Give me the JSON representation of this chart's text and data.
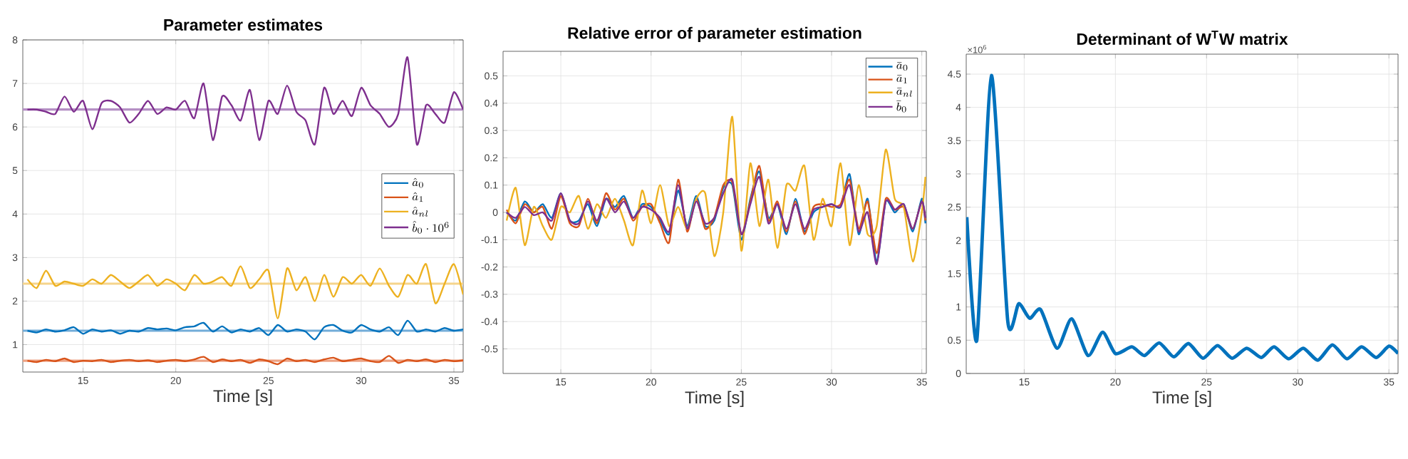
{
  "chart_data": [
    {
      "type": "line",
      "title": "Parameter estimates",
      "xlabel": "Time [s]",
      "x": [
        12,
        12.5,
        13,
        13.5,
        14,
        14.5,
        15,
        15.5,
        16,
        16.5,
        17,
        17.5,
        18,
        18.5,
        19,
        19.5,
        20,
        20.5,
        21,
        21.5,
        22,
        22.5,
        23,
        23.5,
        24,
        24.5,
        25,
        25.5,
        26,
        26.5,
        27,
        27.5,
        28,
        28.5,
        29,
        29.5,
        30,
        30.5,
        31,
        31.5,
        32,
        32.5,
        33,
        33.5,
        34,
        34.5,
        35,
        35.5
      ],
      "series": [
        {
          "name": "\\hat{a}_0",
          "color": "#0072bd",
          "values": [
            1.32,
            1.28,
            1.35,
            1.3,
            1.33,
            1.4,
            1.25,
            1.35,
            1.3,
            1.33,
            1.25,
            1.32,
            1.3,
            1.38,
            1.35,
            1.37,
            1.33,
            1.4,
            1.42,
            1.5,
            1.3,
            1.42,
            1.28,
            1.35,
            1.3,
            1.38,
            1.22,
            1.45,
            1.3,
            1.35,
            1.3,
            1.12,
            1.4,
            1.45,
            1.32,
            1.28,
            1.45,
            1.35,
            1.3,
            1.4,
            1.22,
            1.55,
            1.3,
            1.35,
            1.3,
            1.38,
            1.32,
            1.35
          ]
        },
        {
          "name": "\\hat{a}_1",
          "color": "#d95319",
          "values": [
            0.63,
            0.6,
            0.65,
            0.62,
            0.68,
            0.6,
            0.63,
            0.62,
            0.65,
            0.6,
            0.63,
            0.65,
            0.62,
            0.64,
            0.6,
            0.63,
            0.65,
            0.62,
            0.66,
            0.72,
            0.6,
            0.66,
            0.62,
            0.65,
            0.58,
            0.66,
            0.62,
            0.55,
            0.68,
            0.62,
            0.65,
            0.6,
            0.66,
            0.7,
            0.62,
            0.65,
            0.68,
            0.62,
            0.6,
            0.74,
            0.58,
            0.65,
            0.62,
            0.66,
            0.6,
            0.65,
            0.62,
            0.64
          ]
        },
        {
          "name": "\\hat{a}_{nl}",
          "color": "#edb120",
          "values": [
            2.5,
            2.3,
            2.7,
            2.35,
            2.45,
            2.4,
            2.35,
            2.5,
            2.4,
            2.6,
            2.45,
            2.3,
            2.45,
            2.6,
            2.35,
            2.5,
            2.4,
            2.25,
            2.6,
            2.4,
            2.45,
            2.55,
            2.35,
            2.8,
            2.3,
            2.5,
            2.7,
            1.6,
            2.75,
            2.25,
            2.55,
            2.0,
            2.6,
            2.1,
            2.55,
            2.4,
            2.6,
            2.35,
            2.75,
            2.35,
            2.1,
            2.6,
            2.4,
            2.85,
            1.95,
            2.4,
            2.85,
            2.15
          ]
        },
        {
          "name": "\\hat{b}_0 \\cdot 10^6",
          "color": "#7e2f8e",
          "values": [
            6.4,
            6.4,
            6.35,
            6.3,
            6.7,
            6.35,
            6.6,
            5.95,
            6.55,
            6.6,
            6.45,
            6.1,
            6.3,
            6.6,
            6.3,
            6.45,
            6.4,
            6.6,
            6.2,
            7.0,
            5.7,
            6.7,
            6.5,
            6.15,
            6.85,
            5.7,
            6.6,
            6.3,
            6.95,
            6.35,
            6.15,
            5.6,
            6.9,
            6.3,
            6.6,
            6.25,
            6.9,
            6.5,
            6.3,
            6.0,
            6.3,
            7.6,
            5.6,
            6.5,
            6.3,
            6.1,
            6.8,
            6.4
          ]
        }
      ],
      "ref_lines": [
        {
          "axis": "y",
          "value": 6.4,
          "color": "#b58fc4"
        },
        {
          "axis": "y",
          "value": 2.4,
          "color": "#f5d48c"
        },
        {
          "axis": "y",
          "value": 1.32,
          "color": "#72acd8"
        },
        {
          "axis": "y",
          "value": 0.63,
          "color": "#eda283"
        }
      ],
      "xlim": [
        11.75,
        35.5
      ],
      "ylim": [
        0.37,
        8
      ],
      "xticks": [
        15,
        20,
        25,
        30,
        35
      ],
      "yticks": [
        1,
        2,
        3,
        4,
        5,
        6,
        7,
        8
      ],
      "grid": true,
      "legend": "right"
    },
    {
      "type": "line",
      "title": "Relative error of parameter estimation",
      "xlabel": "Time [s]",
      "x": [
        12,
        12.5,
        13,
        13.5,
        14,
        14.5,
        15,
        15.5,
        16,
        16.5,
        17,
        17.5,
        18,
        18.5,
        19,
        19.5,
        20,
        20.5,
        21,
        21.5,
        22,
        22.5,
        23,
        23.5,
        24,
        24.5,
        25,
        25.5,
        26,
        26.5,
        27,
        27.5,
        28,
        28.5,
        29,
        29.5,
        30,
        30.5,
        31,
        31.5,
        32,
        32.5,
        33,
        33.5,
        34,
        34.5,
        35,
        35.2
      ],
      "series": [
        {
          "name": "\\bar{a}_0",
          "color": "#0072bd",
          "values": [
            0.0,
            -0.03,
            0.04,
            0.0,
            0.03,
            -0.02,
            0.07,
            -0.03,
            -0.03,
            0.03,
            -0.05,
            0.05,
            0.02,
            0.06,
            -0.02,
            0.03,
            0.02,
            -0.03,
            -0.08,
            0.08,
            -0.05,
            0.06,
            -0.05,
            -0.03,
            0.09,
            0.1,
            -0.1,
            0.05,
            0.15,
            -0.02,
            0.03,
            -0.08,
            0.05,
            -0.07,
            0.0,
            0.02,
            0.03,
            0.02,
            0.14,
            -0.08,
            0.05,
            -0.18,
            0.04,
            0.0,
            0.03,
            -0.07,
            0.05,
            -0.04
          ]
        },
        {
          "name": "\\bar{a}_1",
          "color": "#d95319",
          "values": [
            0.01,
            -0.04,
            0.03,
            0.0,
            0.02,
            -0.06,
            0.06,
            -0.04,
            -0.05,
            0.05,
            -0.04,
            0.07,
            0.01,
            0.05,
            -0.03,
            0.02,
            0.03,
            -0.04,
            -0.11,
            0.12,
            -0.07,
            0.05,
            -0.06,
            -0.02,
            0.1,
            0.11,
            -0.08,
            0.04,
            0.17,
            -0.03,
            0.04,
            -0.07,
            0.04,
            -0.08,
            0.02,
            0.03,
            0.02,
            0.03,
            0.12,
            -0.06,
            0.04,
            -0.15,
            0.05,
            0.01,
            0.02,
            -0.06,
            0.04,
            -0.03
          ]
        },
        {
          "name": "\\bar{a}_{nl}",
          "color": "#edb120",
          "values": [
            -0.03,
            0.09,
            -0.12,
            0.02,
            -0.05,
            -0.1,
            0.02,
            0.0,
            0.06,
            -0.06,
            0.03,
            -0.02,
            0.05,
            -0.03,
            -0.12,
            0.08,
            -0.04,
            0.1,
            -0.05,
            0.02,
            -0.06,
            0.05,
            0.07,
            -0.16,
            0.0,
            0.35,
            -0.14,
            0.18,
            -0.05,
            0.12,
            -0.13,
            0.1,
            0.08,
            0.17,
            -0.1,
            0.05,
            -0.05,
            0.18,
            -0.12,
            0.1,
            -0.08,
            -0.05,
            0.23,
            0.05,
            0.02,
            -0.18,
            0.0,
            0.13
          ]
        },
        {
          "name": "\\bar{b}_0",
          "color": "#7e2f8e",
          "values": [
            0.0,
            -0.02,
            0.02,
            -0.01,
            0.0,
            -0.03,
            0.07,
            -0.03,
            -0.04,
            0.04,
            -0.03,
            0.05,
            0.0,
            0.04,
            -0.02,
            0.02,
            0.01,
            -0.02,
            -0.07,
            0.1,
            -0.06,
            0.04,
            -0.04,
            -0.02,
            0.07,
            0.12,
            -0.08,
            0.03,
            0.13,
            -0.04,
            0.03,
            -0.06,
            0.03,
            -0.06,
            0.01,
            0.02,
            0.03,
            0.02,
            0.1,
            -0.07,
            0.0,
            -0.19,
            0.04,
            0.01,
            0.03,
            -0.06,
            0.04,
            -0.02
          ]
        }
      ],
      "xlim": [
        11.8,
        35.25
      ],
      "ylim": [
        -0.59,
        0.59
      ],
      "xticks": [
        15,
        20,
        25,
        30,
        35
      ],
      "yticks": [
        -0.5,
        -0.4,
        -0.3,
        -0.2,
        -0.1,
        0,
        0.1,
        0.2,
        0.3,
        0.4,
        0.5
      ],
      "grid": true,
      "legend": "top right"
    },
    {
      "type": "line",
      "title": "Determinant of W$^{T}$W matrix",
      "xlabel": "Time [s]",
      "annotations": [
        "×10$^{6}$"
      ],
      "x": [
        11.85,
        12.4,
        13.2,
        14.1,
        14.7,
        15.3,
        15.9,
        16.8,
        17.6,
        18.5,
        19.3,
        20.0,
        20.9,
        21.6,
        22.4,
        23.2,
        24.0,
        24.8,
        25.6,
        26.4,
        27.2,
        28.0,
        28.7,
        29.5,
        30.3,
        31.1,
        31.9,
        32.7,
        33.5,
        34.3,
        35.0,
        35.5
      ],
      "series": [
        {
          "color": "#0072bd",
          "values": [
            2.35,
            0.5,
            4.48,
            0.78,
            1.05,
            0.83,
            0.96,
            0.38,
            0.82,
            0.27,
            0.62,
            0.3,
            0.4,
            0.27,
            0.46,
            0.25,
            0.45,
            0.23,
            0.42,
            0.23,
            0.38,
            0.24,
            0.4,
            0.22,
            0.38,
            0.2,
            0.43,
            0.22,
            0.4,
            0.24,
            0.41,
            0.3
          ]
        }
      ],
      "xlim": [
        11.82,
        35.5
      ],
      "ylim": [
        0,
        4.8
      ],
      "xticks": [
        15,
        20,
        25,
        30,
        35
      ],
      "yticks": [
        0,
        0.5,
        1,
        1.5,
        2,
        2.5,
        3,
        3.5,
        4,
        4.5
      ],
      "grid": true
    }
  ]
}
